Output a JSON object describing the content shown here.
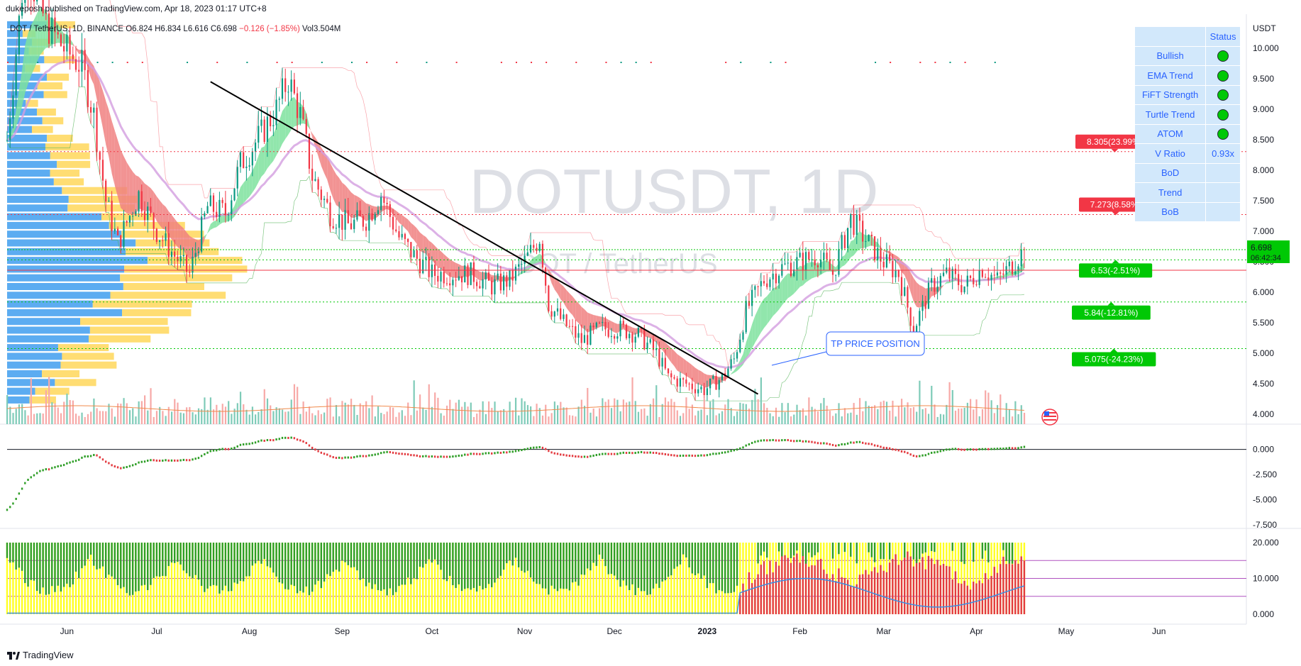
{
  "header": {
    "publish_line": "dukeposh published on TradingView.com, Apr 18, 2023 01:17 UTC+8",
    "legend": {
      "symbol": "DOT / TetherUS, 1D, BINANCE",
      "open": "O6.824",
      "high": "H6.834",
      "low": "L6.616",
      "close": "C6.698",
      "change": "−0.126 (−1.85%)",
      "volume": "Vol3.504M"
    }
  },
  "watermark": {
    "line1": "DOTUSDT, 1D",
    "line2": "DOT / TetherUS"
  },
  "status_table": {
    "header": "Status",
    "rows": [
      {
        "label": "Bullish",
        "status": "dot"
      },
      {
        "label": "EMA Trend",
        "status": "dot"
      },
      {
        "label": "FiFT Strength",
        "status": "dot"
      },
      {
        "label": "Turtle Trend",
        "status": "dot"
      },
      {
        "label": "ATOM",
        "status": "dot"
      },
      {
        "label": "V Ratio",
        "status": "0.93x"
      },
      {
        "label": "BoD",
        "status": ""
      },
      {
        "label": "Trend",
        "status": ""
      },
      {
        "label": "BoB",
        "status": ""
      }
    ]
  },
  "annotation": {
    "text": "TP PRICE POSITION"
  },
  "price_tags": [
    {
      "price": 8.305,
      "text": "8.305(23.99%)",
      "color": "#f23645"
    },
    {
      "price": 7.273,
      "text": "7.273(8.58%)",
      "color": "#f23645"
    },
    {
      "price": 6.53,
      "text": "6.53(-2.51%)",
      "color": "#00c805"
    },
    {
      "price": 5.84,
      "text": "5.84(-12.81%)",
      "color": "#00c805"
    },
    {
      "price": 5.075,
      "text": "5.075(-24.23%)",
      "color": "#00c805"
    }
  ],
  "current_price": {
    "price": 6.698,
    "text": "6.698",
    "countdown": "06:42:34",
    "color": "#00c805"
  },
  "reference_line": {
    "price": 6.36,
    "color": "#f23645"
  },
  "colors": {
    "up": "#089981",
    "down": "#f23645",
    "green_cloud": "#7ee29e",
    "red_cloud": "#f08080",
    "ema_purple": "#d39ee0",
    "profile_blue": "#4aa3f0",
    "profile_yellow": "#ffd75a",
    "trendline": "#000000",
    "bar_yellow": "#ffff22",
    "bar_green": "#2e9e26",
    "bar_red": "#e33b40",
    "line_blue": "#3c8de0"
  },
  "chart_data": {
    "type": "candlestick",
    "currency_label": "USDT",
    "price_axis": {
      "ticks": [
        "10.000",
        "9.500",
        "9.000",
        "8.500",
        "8.000",
        "7.500",
        "7.000",
        "6.500",
        "6.000",
        "5.500",
        "5.000",
        "4.500",
        "4.000"
      ],
      "ylim": [
        3.85,
        10.3
      ]
    },
    "time_axis": {
      "labels": [
        "Jun",
        "Jul",
        "Aug",
        "Sep",
        "Oct",
        "Nov",
        "Dec",
        "2023",
        "Feb",
        "Mar",
        "Apr",
        "May",
        "Jun"
      ],
      "start": "2022-05-12",
      "end": "2023-06-30"
    },
    "price_path": [
      [
        "2022-05-12",
        8.5
      ],
      [
        "2022-05-18",
        11.4
      ],
      [
        "2022-05-25",
        10.4
      ],
      [
        "2022-05-31",
        10.0
      ],
      [
        "2022-06-06",
        9.7
      ],
      [
        "2022-06-10",
        8.9
      ],
      [
        "2022-06-14",
        7.5
      ],
      [
        "2022-06-18",
        6.8
      ],
      [
        "2022-06-25",
        7.6
      ],
      [
        "2022-07-01",
        7.0
      ],
      [
        "2022-07-07",
        6.6
      ],
      [
        "2022-07-12",
        6.3
      ],
      [
        "2022-07-18",
        7.4
      ],
      [
        "2022-07-24",
        7.3
      ],
      [
        "2022-07-29",
        8.1
      ],
      [
        "2022-08-05",
        8.6
      ],
      [
        "2022-08-10",
        9.0
      ],
      [
        "2022-08-14",
        9.5
      ],
      [
        "2022-08-18",
        8.9
      ],
      [
        "2022-08-22",
        7.9
      ],
      [
        "2022-08-28",
        7.3
      ],
      [
        "2022-09-03",
        7.1
      ],
      [
        "2022-09-09",
        7.2
      ],
      [
        "2022-09-14",
        7.6
      ],
      [
        "2022-09-20",
        6.9
      ],
      [
        "2022-09-25",
        6.6
      ],
      [
        "2022-10-01",
        6.3
      ],
      [
        "2022-10-08",
        6.3
      ],
      [
        "2022-10-14",
        6.3
      ],
      [
        "2022-10-21",
        6.1
      ],
      [
        "2022-10-27",
        6.2
      ],
      [
        "2022-11-01",
        6.5
      ],
      [
        "2022-11-06",
        6.9
      ],
      [
        "2022-11-09",
        5.8
      ],
      [
        "2022-11-14",
        5.5
      ],
      [
        "2022-11-20",
        5.2
      ],
      [
        "2022-11-26",
        5.4
      ],
      [
        "2022-12-03",
        5.4
      ],
      [
        "2022-12-09",
        5.3
      ],
      [
        "2022-12-15",
        5.0
      ],
      [
        "2022-12-19",
        4.6
      ],
      [
        "2022-12-25",
        4.5
      ],
      [
        "2022-12-31",
        4.4
      ],
      [
        "2023-01-06",
        4.6
      ],
      [
        "2023-01-10",
        4.9
      ],
      [
        "2023-01-14",
        5.7
      ],
      [
        "2023-01-20",
        6.2
      ],
      [
        "2023-01-26",
        6.4
      ],
      [
        "2023-02-01",
        6.5
      ],
      [
        "2023-02-07",
        6.6
      ],
      [
        "2023-02-12",
        6.3
      ],
      [
        "2023-02-18",
        7.2
      ],
      [
        "2023-02-24",
        6.8
      ],
      [
        "2023-03-01",
        6.5
      ],
      [
        "2023-03-06",
        6.3
      ],
      [
        "2023-03-11",
        5.4
      ],
      [
        "2023-03-17",
        6.1
      ],
      [
        "2023-03-22",
        6.3
      ],
      [
        "2023-03-28",
        6.1
      ],
      [
        "2023-04-03",
        6.4
      ],
      [
        "2023-04-08",
        6.2
      ],
      [
        "2023-04-12",
        6.4
      ],
      [
        "2023-04-17",
        6.698
      ]
    ],
    "trendline": [
      [
        "2022-07-19",
        9.45
      ],
      [
        "2023-01-18",
        4.33
      ]
    ],
    "oscillator": {
      "ticks": [
        "0.000",
        "-2.500",
        "-5.000",
        "-7.500"
      ],
      "ylim": [
        -7.7,
        1.8
      ]
    },
    "lower_indicator": {
      "ticks": [
        "20.000",
        "10.000",
        "0.000"
      ],
      "ylim": [
        0,
        21
      ],
      "levels": [
        15,
        10,
        5
      ]
    }
  },
  "footer": {
    "brand": "TradingView"
  }
}
